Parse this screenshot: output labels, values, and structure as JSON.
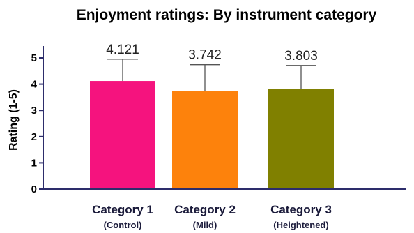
{
  "chart_data": {
    "type": "bar",
    "title": "Enjoyment ratings: By instrument category",
    "ylabel": "Rating (1-5)",
    "xlabel": "",
    "ylim": [
      0,
      5
    ],
    "yticks": [
      0,
      1,
      2,
      3,
      4,
      5
    ],
    "categories": [
      {
        "label": "Category 1",
        "sublabel": "(Control)"
      },
      {
        "label": "Category 2",
        "sublabel": "(Mild)"
      },
      {
        "label": "Category 3",
        "sublabel": "(Heightened)"
      }
    ],
    "values": [
      4.121,
      3.742,
      3.803
    ],
    "data_labels": [
      "4.121",
      "3.742",
      "3.803"
    ],
    "error_upper": [
      0.83,
      1.0,
      0.91
    ],
    "colors": [
      "#f5137e",
      "#fd820c",
      "#808000"
    ],
    "axis_color": "#2d2d6b",
    "grid": false,
    "legend": "none"
  }
}
